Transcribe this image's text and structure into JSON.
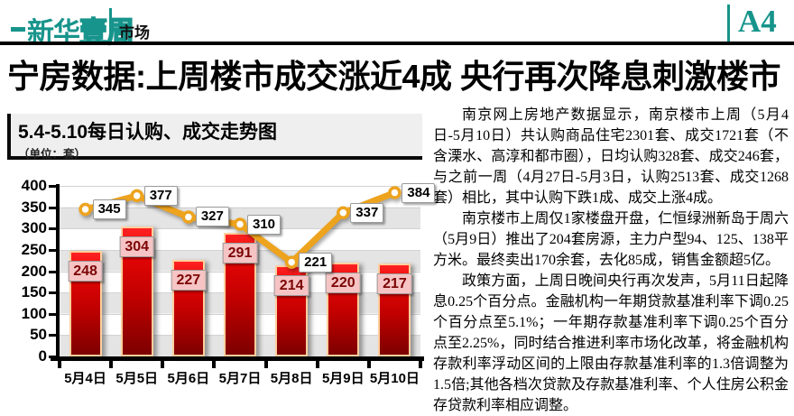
{
  "masthead": {
    "logo_text_solid": "新华",
    "logo_text_outline": "壹周",
    "section_label": "市场",
    "page_number": "A4",
    "brand_color": "#17948b"
  },
  "headline": "宁房数据:上周楼市成交涨近4成 央行再次降息刺激楼市",
  "figure": {
    "title": "5.4-5.10每日认购、成交走势图",
    "unit_note": "（单位：套）"
  },
  "chart_data": {
    "type": "bar+line",
    "title": "5.4-5.10每日认购、成交走势图",
    "unit": "套",
    "categories": [
      "5月4日",
      "5月5日",
      "5月6日",
      "5月7日",
      "5月8日",
      "5月9日",
      "5月10日"
    ],
    "series": [
      {
        "name": "认购",
        "type": "line",
        "color": "#eda31d",
        "values": [
          345,
          377,
          327,
          310,
          221,
          337,
          384
        ]
      },
      {
        "name": "成交",
        "type": "bar",
        "color": "#c00000",
        "values": [
          248,
          304,
          227,
          291,
          214,
          220,
          217
        ]
      }
    ],
    "ylim": [
      0,
      400
    ],
    "ytick_step": 50,
    "grid": "horizontal alternating bands",
    "legend": "none"
  },
  "article": {
    "paragraphs": [
      "南京网上房地产数据显示，南京楼市上周（5月4日-5月10日）共认购商品住宅2301套、成交1721套（不含溧水、高淳和都市圈），日均认购328套、成交246套，与之前一周（4月27日-5月3日，认购2513套、成交1268套）相比，其中认购下跌1成、成交上涨4成。",
      "南京楼市上周仅1家楼盘开盘，仁恒绿洲新岛于周六（5月9日）推出了204套房源，主力户型94、125、138平方米。最终卖出170余套，去化85成，销售金额超5亿。",
      "政策方面，上周日晚间央行再次发声，5月11日起降息0.25个百分点。金融机构一年期贷款基准利率下调0.25个百分点至5.1%；一年期存款基准利率下调0.25个百分点至2.25%，同时结合推进利率市场化改革，将金融机构存款利率浮动区间的上限由存款基准利率的1.3倍调整为1.5倍;其他各档次贷款及存款基准利率、个人住房公积金存贷款利率相应调整。"
    ]
  }
}
